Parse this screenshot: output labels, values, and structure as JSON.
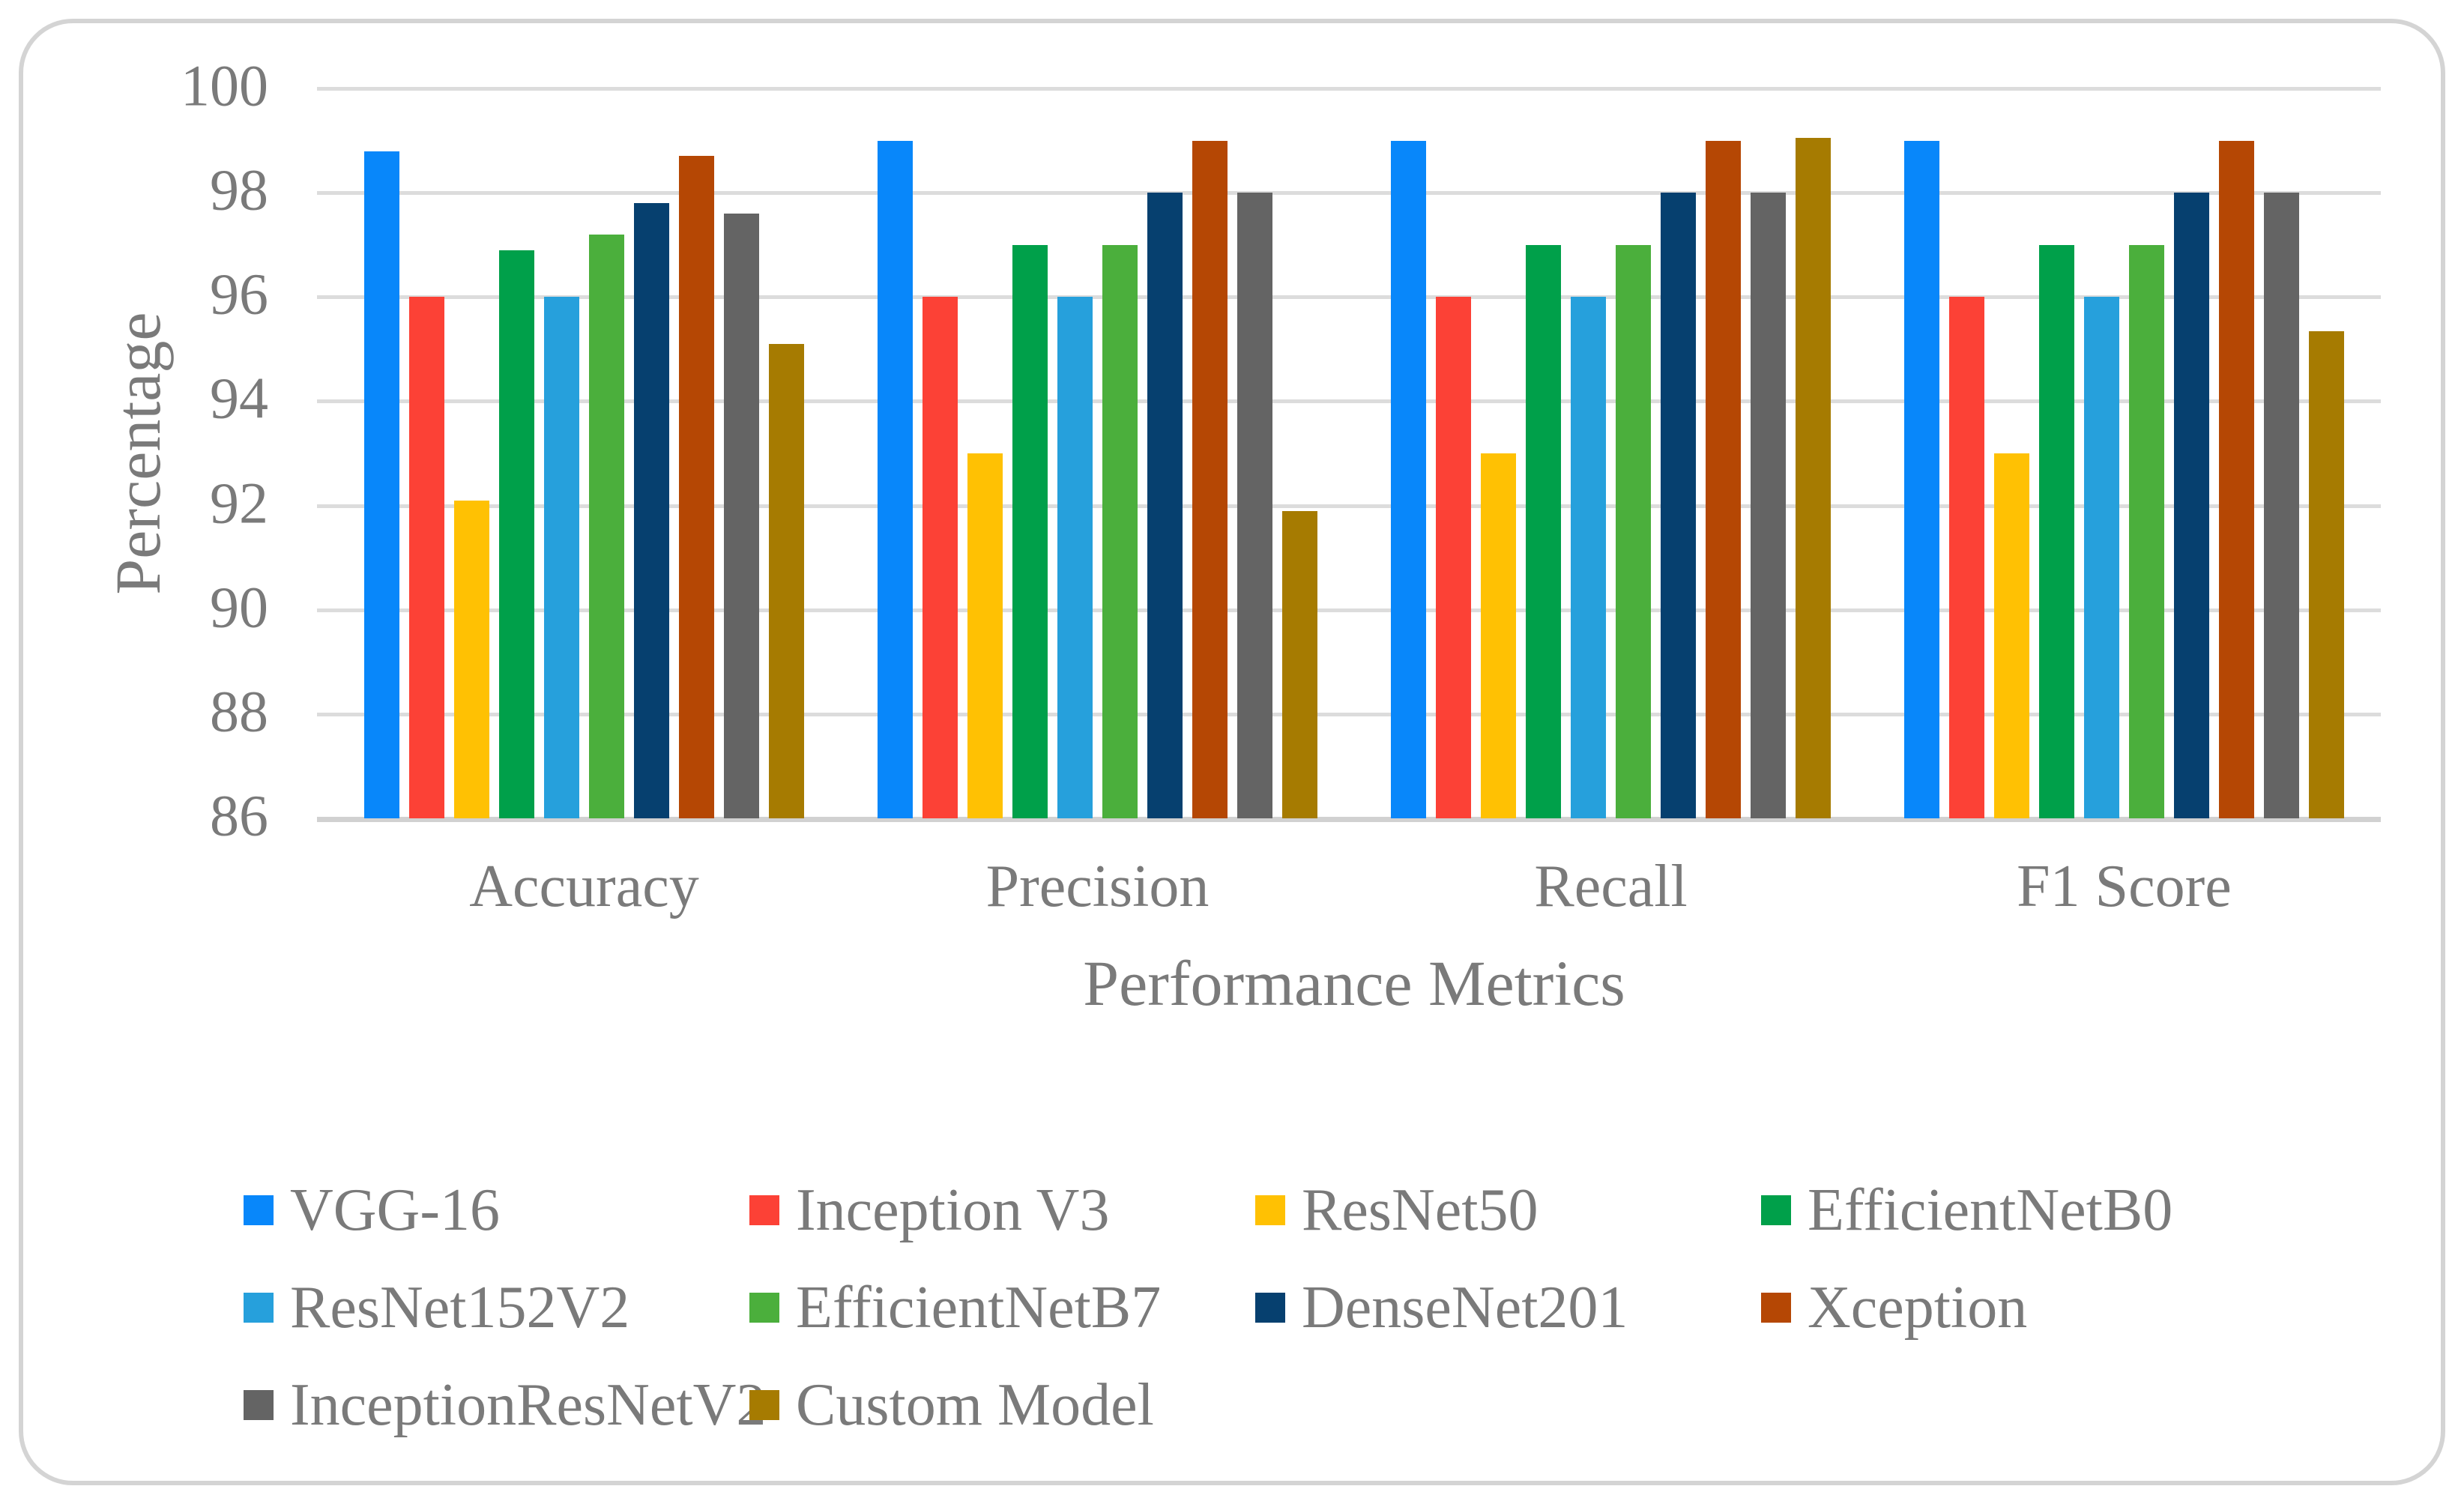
{
  "chart_data": {
    "type": "bar",
    "title": "",
    "xlabel": "Performance Metrics",
    "ylabel": "Percentage",
    "ylim": [
      86,
      100
    ],
    "yticks": [
      100,
      98,
      96,
      94,
      92,
      90,
      88,
      86
    ],
    "grid": "horizontal",
    "legend_position": "bottom",
    "categories": [
      "Accuracy",
      "Precision",
      "Recall",
      "F1 Score"
    ],
    "series": [
      {
        "name": "VGG-16",
        "color": "#0887fa",
        "values": [
          98.8,
          99.0,
          99.0,
          99.0
        ]
      },
      {
        "name": "Inception V3",
        "color": "#fc4136",
        "values": [
          96.0,
          96.0,
          96.0,
          96.0
        ]
      },
      {
        "name": "ResNet50",
        "color": "#ffc103",
        "values": [
          92.1,
          93.0,
          93.0,
          93.0
        ]
      },
      {
        "name": "EfficientNetB0",
        "color": "#00a04a",
        "values": [
          96.9,
          97.0,
          97.0,
          97.0
        ]
      },
      {
        "name": "ResNet152V2",
        "color": "#26a0dc",
        "values": [
          96.0,
          96.0,
          96.0,
          96.0
        ]
      },
      {
        "name": "EfficientNetB7",
        "color": "#4baf3c",
        "values": [
          97.2,
          97.0,
          97.0,
          97.0
        ]
      },
      {
        "name": "DenseNet201",
        "color": "#06406f",
        "values": [
          97.8,
          98.0,
          98.0,
          98.0
        ]
      },
      {
        "name": "Xception",
        "color": "#b54704",
        "values": [
          98.7,
          99.0,
          99.0,
          99.0
        ]
      },
      {
        "name": "InceptionResNetV2",
        "color": "#646464",
        "values": [
          97.6,
          98.0,
          98.0,
          98.0
        ]
      },
      {
        "name": "Custom Model",
        "color": "#a67b01",
        "values": [
          95.1,
          91.9,
          99.05,
          95.35
        ]
      }
    ],
    "colors": {
      "gridline": "#dcdcdc",
      "axis_line": "#d1d1d1",
      "text": "#7a7a7a",
      "frame_border": "#d4d4d4",
      "background": "#ffffff"
    }
  }
}
